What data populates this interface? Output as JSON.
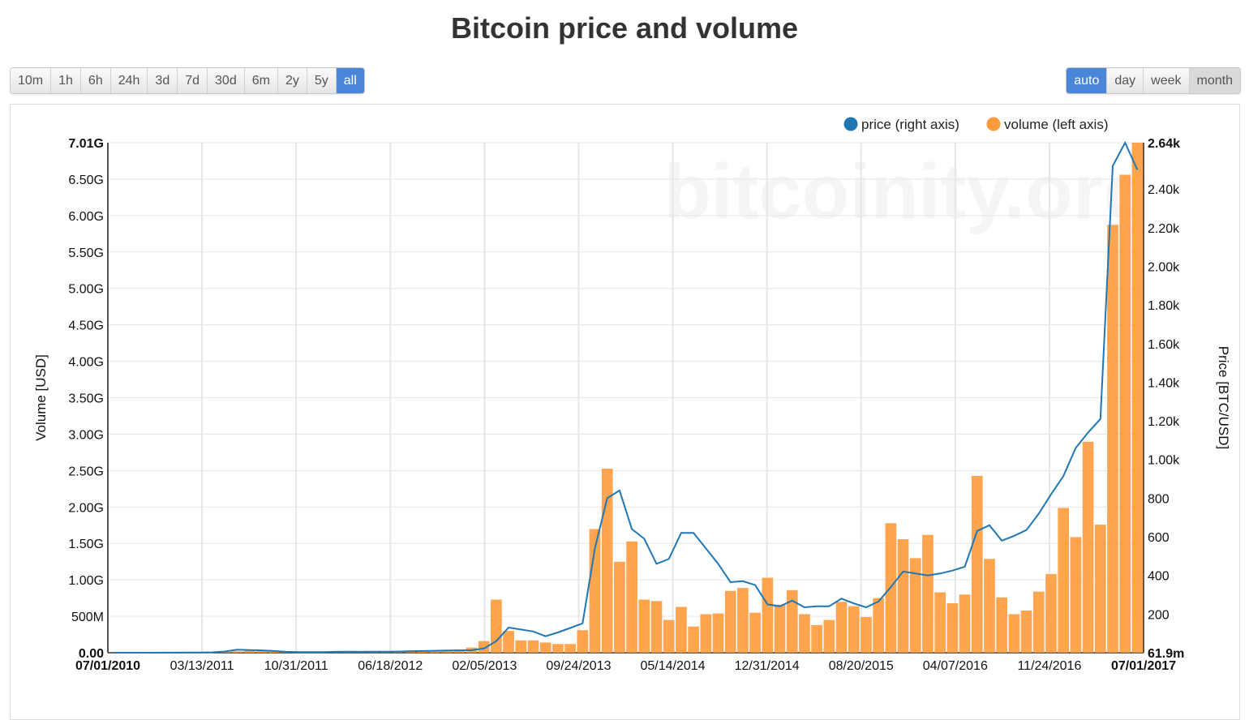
{
  "title": "Bitcoin price and volume",
  "range_buttons": [
    {
      "label": "10m",
      "active": false
    },
    {
      "label": "1h",
      "active": false
    },
    {
      "label": "6h",
      "active": false
    },
    {
      "label": "24h",
      "active": false
    },
    {
      "label": "3d",
      "active": false
    },
    {
      "label": "7d",
      "active": false
    },
    {
      "label": "30d",
      "active": false
    },
    {
      "label": "6m",
      "active": false
    },
    {
      "label": "2y",
      "active": false
    },
    {
      "label": "5y",
      "active": false
    },
    {
      "label": "all",
      "active": true
    }
  ],
  "resolution_buttons": [
    {
      "label": "auto",
      "active": true
    },
    {
      "label": "day",
      "active": false
    },
    {
      "label": "week",
      "active": false
    },
    {
      "label": "month",
      "active": false,
      "pressed": true
    }
  ],
  "watermark": "bitcoinity.org",
  "colors": {
    "price": "#1f77b4",
    "volume": "#ff9a3c",
    "active_button": "#4a86d8"
  },
  "chart_data": {
    "type": "bar",
    "title": "Bitcoin price and volume",
    "legend": {
      "placement": "top-right",
      "entries": [
        "price (right axis)",
        "volume (left axis)"
      ]
    },
    "grid": true,
    "x_ticks": [
      "07/01/2010",
      "03/13/2011",
      "10/31/2011",
      "06/18/2012",
      "02/05/2013",
      "09/24/2013",
      "05/14/2014",
      "12/31/2014",
      "08/20/2015",
      "04/07/2016",
      "11/24/2016",
      "07/01/2017"
    ],
    "x_tick_bold": [
      true,
      false,
      false,
      false,
      false,
      false,
      false,
      false,
      false,
      false,
      false,
      true
    ],
    "y_left": {
      "label": "Volume [USD]",
      "ticks": [
        "0.00",
        "500M",
        "1.00G",
        "1.50G",
        "2.00G",
        "2.50G",
        "3.00G",
        "3.50G",
        "4.00G",
        "4.50G",
        "5.00G",
        "5.50G",
        "6.00G",
        "6.50G",
        "7.01G"
      ],
      "range": [
        0,
        7.01
      ],
      "unit": "G USD"
    },
    "y_right": {
      "label": "Price [BTC/USD]",
      "ticks": [
        "61.9m",
        "200",
        "400",
        "600",
        "800",
        "1.00k",
        "1.20k",
        "1.40k",
        "1.60k",
        "1.80k",
        "2.00k",
        "2.20k",
        "2.40k",
        "2.64k"
      ],
      "range": [
        0.0619,
        2640
      ]
    },
    "series": [
      {
        "name": "volume (left axis)",
        "axis": "left",
        "kind": "bar",
        "values": [
          0.002,
          0.002,
          0.002,
          0.003,
          0.003,
          0.003,
          0.004,
          0.005,
          0.006,
          0.008,
          0.02,
          0.03,
          0.03,
          0.025,
          0.015,
          0.012,
          0.01,
          0.01,
          0.012,
          0.012,
          0.013,
          0.015,
          0.02,
          0.025,
          0.03,
          0.03,
          0.03,
          0.035,
          0.045,
          0.07,
          0.16,
          0.73,
          0.3,
          0.17,
          0.17,
          0.14,
          0.12,
          0.12,
          0.31,
          1.7,
          2.53,
          1.25,
          1.53,
          0.73,
          0.71,
          0.45,
          0.63,
          0.36,
          0.53,
          0.54,
          0.85,
          0.89,
          0.55,
          1.03,
          0.66,
          0.86,
          0.53,
          0.38,
          0.45,
          0.7,
          0.64,
          0.49,
          0.75,
          1.78,
          1.56,
          1.3,
          1.62,
          0.83,
          0.68,
          0.8,
          2.43,
          1.29,
          0.76,
          0.53,
          0.58,
          0.84,
          1.08,
          1.99,
          1.59,
          2.9,
          1.76,
          5.88,
          6.57,
          7.01
        ]
      },
      {
        "name": "price (right axis)",
        "axis": "right",
        "kind": "line",
        "values": [
          0.07,
          0.06,
          0.1,
          0.2,
          0.25,
          0.3,
          0.9,
          1.0,
          2.0,
          6.5,
          16.0,
          14.0,
          12.0,
          9.0,
          4.5,
          3.0,
          2.8,
          3.3,
          4.5,
          5.0,
          4.8,
          5.2,
          5.5,
          6.0,
          7.5,
          9.0,
          10.0,
          11.5,
          12.0,
          13.0,
          22.0,
          60.0,
          130.0,
          120.0,
          110.0,
          85.0,
          105.0,
          128.0,
          152.0,
          540.0,
          800.0,
          840.0,
          640.0,
          590.0,
          460.0,
          485.0,
          620.0,
          620.0,
          540.0,
          460.0,
          365.0,
          370.0,
          350.0,
          250.0,
          240.0,
          270.0,
          235.0,
          240.0,
          240.0,
          280.0,
          255.0,
          235.0,
          265.0,
          340.0,
          420.0,
          410.0,
          400.0,
          410.0,
          425.0,
          445.0,
          630.0,
          660.0,
          580.0,
          605.0,
          635.0,
          720.0,
          820.0,
          915.0,
          1060.0,
          1140.0,
          1210.0,
          2520.0,
          2640.0,
          2500.0
        ]
      }
    ]
  }
}
